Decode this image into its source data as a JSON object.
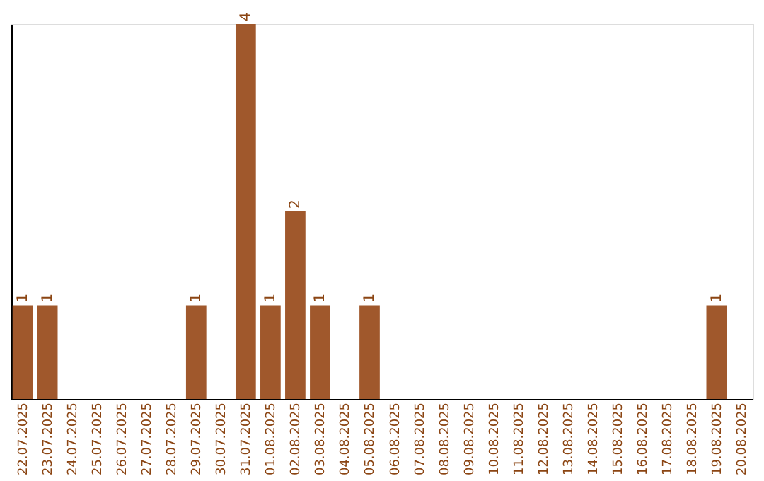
{
  "chart_data": {
    "type": "bar",
    "categories": [
      "22.07.2025",
      "23.07.2025",
      "24.07.2025",
      "25.07.2025",
      "26.07.2025",
      "27.07.2025",
      "28.07.2025",
      "29.07.2025",
      "30.07.2025",
      "31.07.2025",
      "01.08.2025",
      "02.08.2025",
      "03.08.2025",
      "04.08.2025",
      "05.08.2025",
      "06.08.2025",
      "07.08.2025",
      "08.08.2025",
      "09.08.2025",
      "10.08.2025",
      "11.08.2025",
      "12.08.2025",
      "13.08.2025",
      "14.08.2025",
      "15.08.2025",
      "16.08.2025",
      "17.08.2025",
      "18.08.2025",
      "19.08.2025",
      "20.08.2025"
    ],
    "values": [
      1,
      1,
      0,
      0,
      0,
      0,
      0,
      1,
      0,
      4,
      1,
      2,
      1,
      0,
      1,
      0,
      0,
      0,
      0,
      0,
      0,
      0,
      0,
      0,
      0,
      0,
      0,
      0,
      1,
      0
    ],
    "value_labels": [
      "1",
      "1",
      null,
      null,
      null,
      null,
      null,
      "1",
      null,
      "4",
      "1",
      "2",
      "1",
      null,
      "1",
      null,
      null,
      null,
      null,
      null,
      null,
      null,
      null,
      null,
      null,
      null,
      null,
      null,
      "1",
      null
    ],
    "color": "#a0582c",
    "tick_labels": "x",
    "grid": false
  }
}
